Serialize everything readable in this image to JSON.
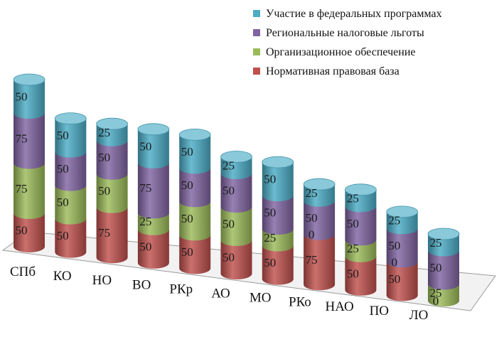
{
  "chart_data": {
    "type": "bar",
    "stacked": true,
    "shape": "cylinder-3d",
    "categories": [
      "СПб",
      "КО",
      "НО",
      "ВО",
      "РКр",
      "АО",
      "МО",
      "РКо",
      "НАО",
      "ПО",
      "ЛО"
    ],
    "series": [
      {
        "name": "Нормативная правовая база",
        "color": "#c0504d",
        "values": [
          50,
          50,
          75,
          50,
          50,
          50,
          50,
          75,
          50,
          50,
          0
        ]
      },
      {
        "name": "Организационное обеспечение",
        "color": "#9bbb59",
        "values": [
          75,
          50,
          50,
          25,
          50,
          50,
          25,
          0,
          25,
          0,
          25
        ]
      },
      {
        "name": "Региональные налоговые льготы",
        "color": "#8064a2",
        "values": [
          75,
          50,
          50,
          75,
          50,
          50,
          50,
          50,
          50,
          50,
          50
        ]
      },
      {
        "name": "Участие в федеральных программах",
        "color": "#4bacc6",
        "values": [
          50,
          50,
          25,
          50,
          50,
          25,
          50,
          25,
          25,
          25,
          25
        ]
      }
    ],
    "legend_order": [
      3,
      2,
      1,
      0
    ],
    "legend": "top-right",
    "grid": false,
    "ylim": [
      0,
      250
    ]
  }
}
